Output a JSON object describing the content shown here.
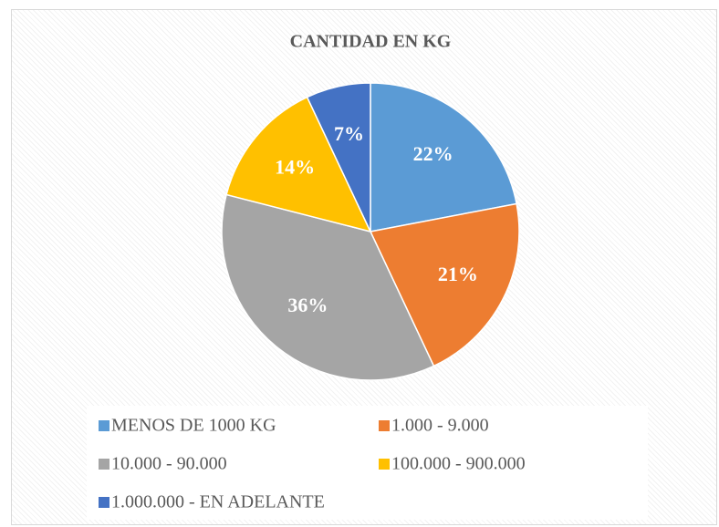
{
  "chart_data": {
    "type": "pie",
    "title": "CANTIDAD EN KG",
    "categories": [
      "MENOS DE 1000 KG",
      "1.000 - 9.000",
      "10.000 - 90.000",
      "100.000 - 900.000",
      "1.000.000 - EN ADELANTE"
    ],
    "values": [
      22,
      21,
      36,
      14,
      7
    ],
    "value_labels": [
      "22%",
      "21%",
      "36%",
      "14%",
      "7%"
    ],
    "colors": [
      "#5b9bd5",
      "#ed7d31",
      "#a5a5a5",
      "#ffc000",
      "#4472c4"
    ],
    "legend": "bottom"
  }
}
